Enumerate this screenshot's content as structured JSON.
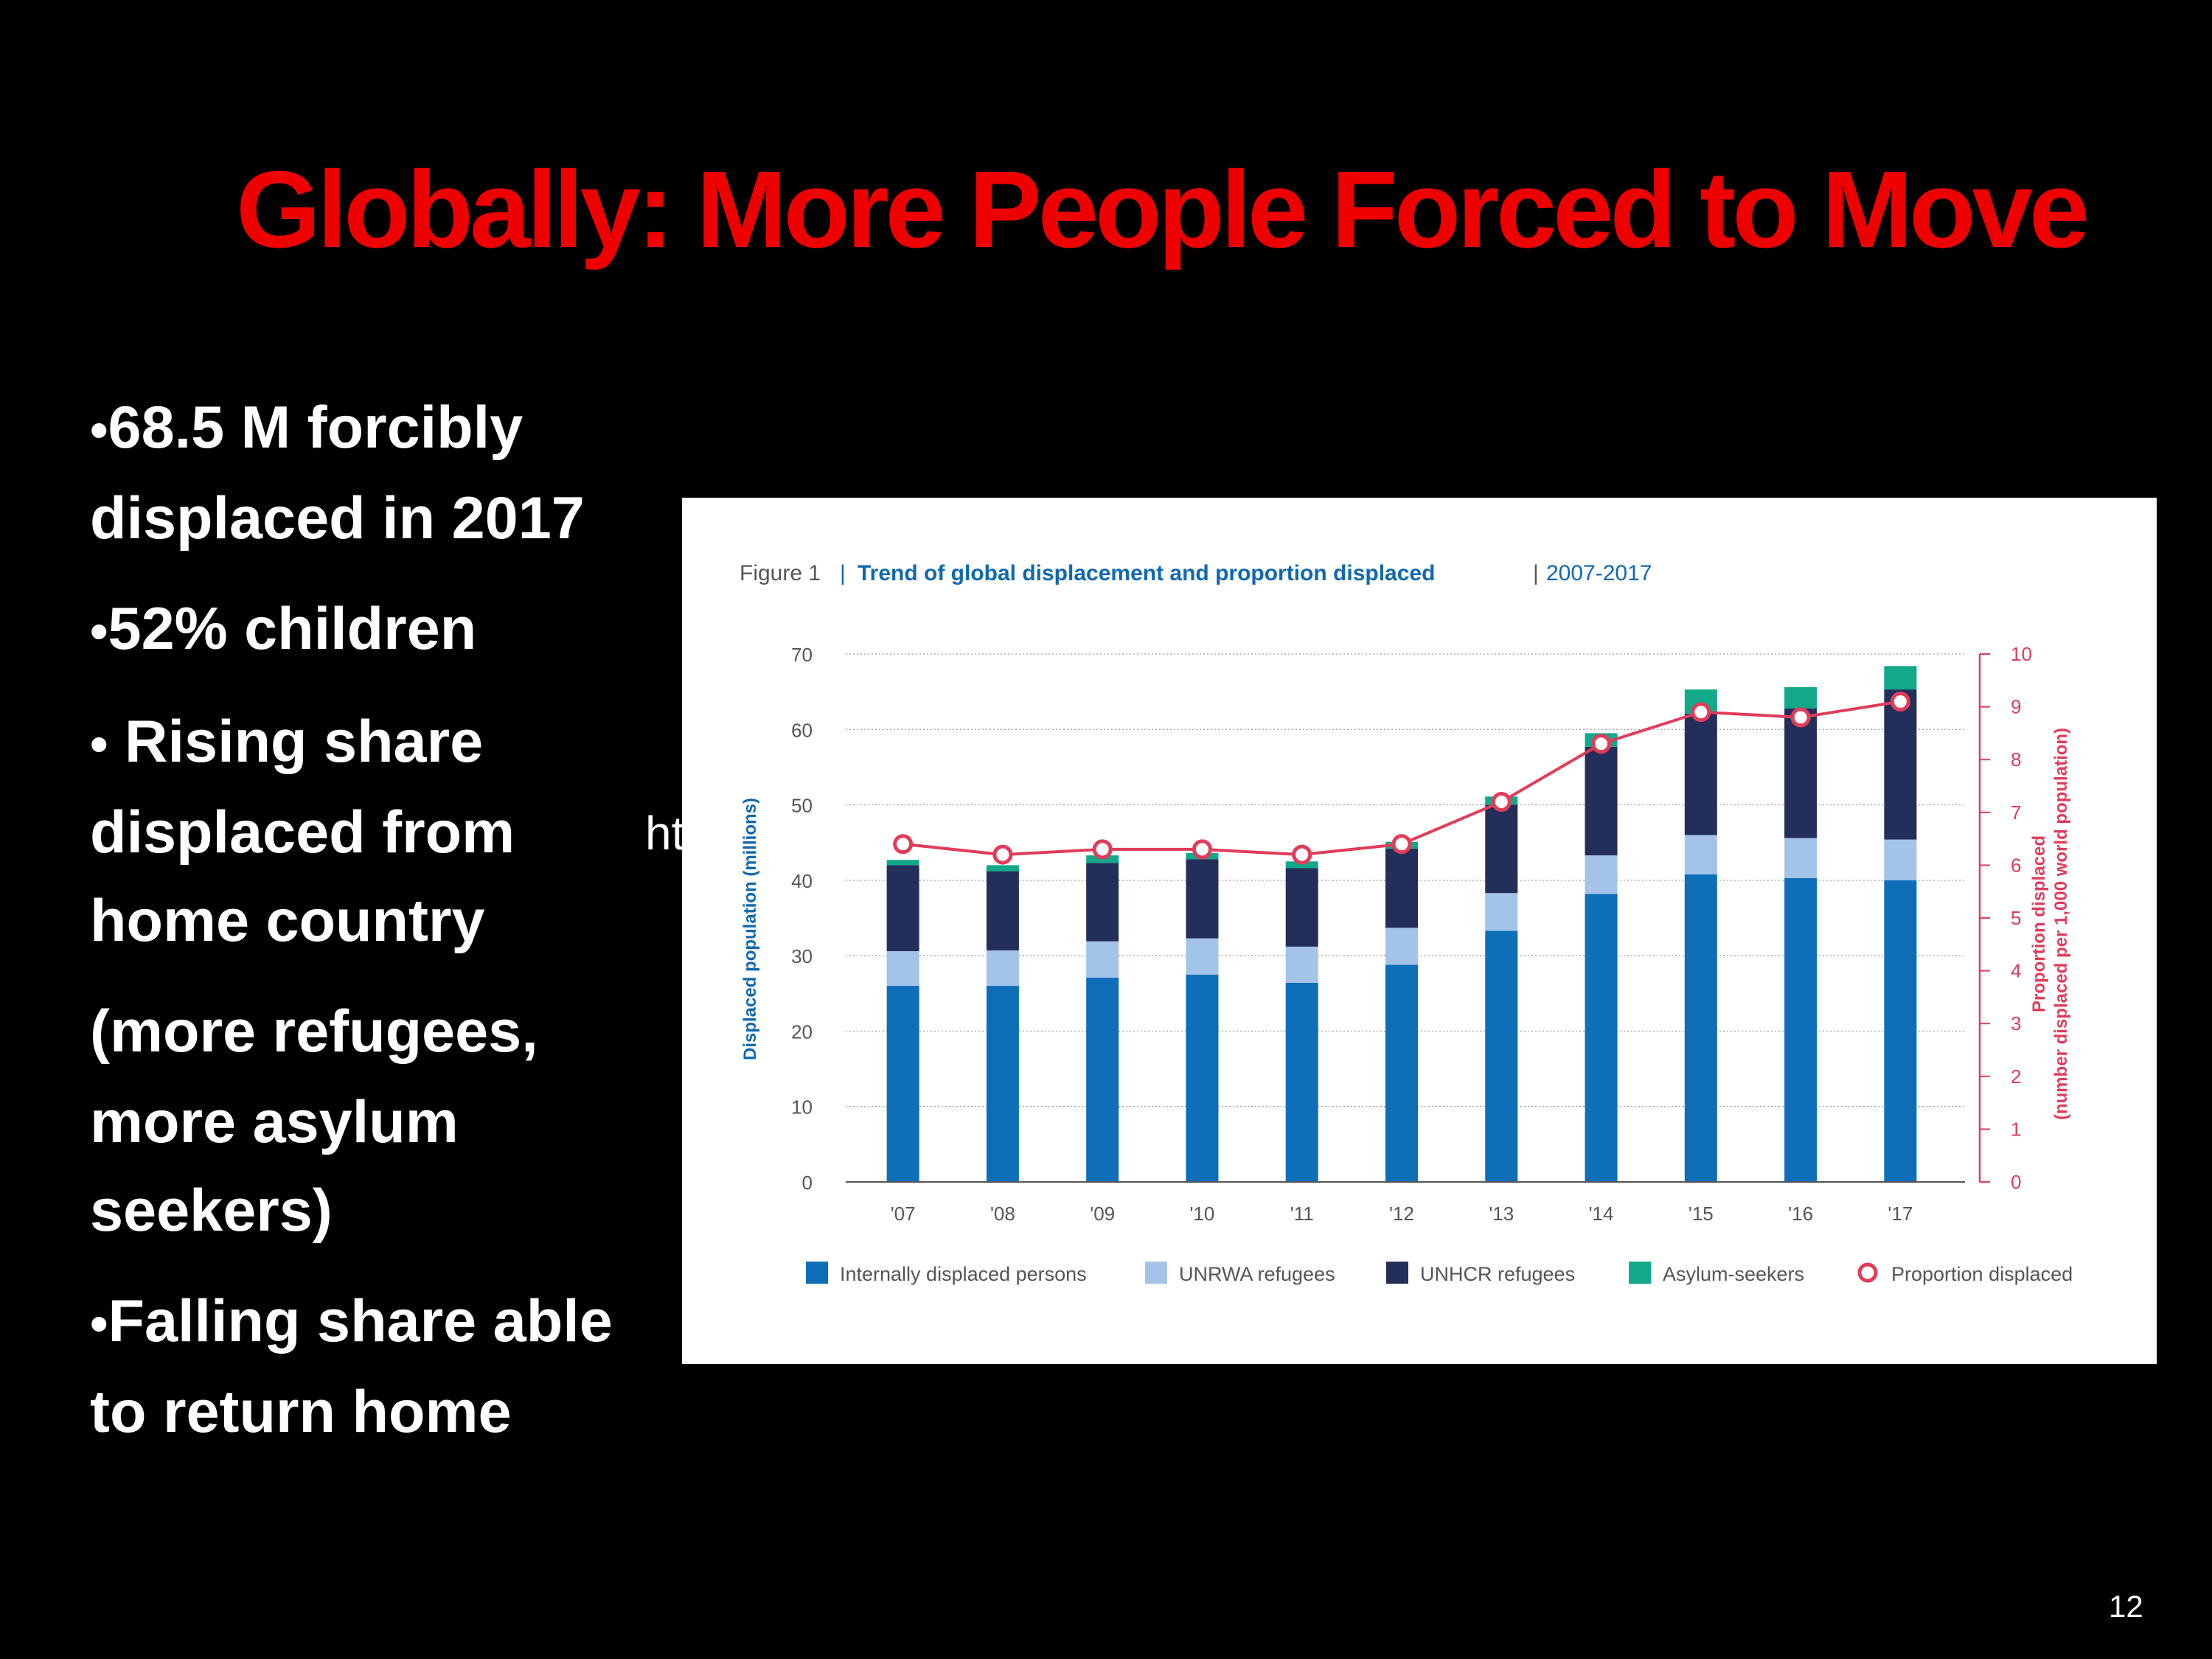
{
  "slide": {
    "title": "Globally: More People Forced to Move",
    "bullets": [
      {
        "marker": "•",
        "text": "68.5 M forcibly displaced in 2017"
      },
      {
        "marker": "•",
        "text": "52% children"
      },
      {
        "marker": "•",
        "text": " Rising share displaced from home country"
      },
      {
        "marker": "",
        "text": "(more refugees, more asylum seekers)"
      },
      {
        "marker": "•",
        "text": "Falling share able to return home"
      }
    ],
    "page_number": "12",
    "overlay_fragments": "ht"
  },
  "chart_data": {
    "type": "bar",
    "stacked": true,
    "figure_label": "Figure 1",
    "title": "Trend of global displacement and proportion displaced",
    "subtitle": "2007-2017",
    "categories": [
      "'07",
      "'08",
      "'09",
      "'10",
      "'11",
      "'12",
      "'13",
      "'14",
      "'15",
      "'16",
      "'17"
    ],
    "ylabel": "Displaced population (millions)",
    "ylim": [
      0,
      70
    ],
    "yticks": [
      0,
      10,
      20,
      30,
      40,
      50,
      60,
      70
    ],
    "y2label_line1": "Proportion displaced",
    "y2label_line2": "(number displaced per 1,000 world population)",
    "y2lim": [
      0,
      10
    ],
    "y2ticks": [
      0,
      1,
      2,
      3,
      4,
      5,
      6,
      7,
      8,
      9,
      10
    ],
    "grid": true,
    "legend_position": "bottom",
    "series": [
      {
        "name": "Internally displaced persons",
        "color": "#0e6eb8",
        "values": [
          26.0,
          26.0,
          27.1,
          27.5,
          26.4,
          28.8,
          33.3,
          38.2,
          40.8,
          40.3,
          40.0
        ]
      },
      {
        "name": "UNRWA refugees",
        "color": "#a4c3e9",
        "values": [
          4.6,
          4.7,
          4.8,
          4.8,
          4.8,
          4.9,
          5.0,
          5.1,
          5.2,
          5.3,
          5.4
        ]
      },
      {
        "name": "UNHCR refugees",
        "color": "#232f5a",
        "values": [
          11.4,
          10.5,
          10.4,
          10.5,
          10.4,
          10.5,
          11.7,
          14.4,
          16.1,
          17.2,
          19.9
        ]
      },
      {
        "name": "Asylum-seekers",
        "color": "#12a88a",
        "values": [
          0.7,
          0.8,
          1.0,
          0.8,
          0.9,
          0.9,
          1.1,
          1.8,
          3.2,
          2.8,
          3.1
        ]
      }
    ],
    "line_series": {
      "name": "Proportion displaced",
      "color": "#e13c5a",
      "axis": "right",
      "values": [
        6.4,
        6.2,
        6.3,
        6.3,
        6.2,
        6.4,
        7.2,
        8.3,
        8.9,
        8.8,
        9.1
      ]
    },
    "colors": {
      "axis_right": "#e13c5a",
      "axis_left_label": "#1068b0",
      "title_blue": "#1068b0",
      "tick": "#555555"
    }
  }
}
